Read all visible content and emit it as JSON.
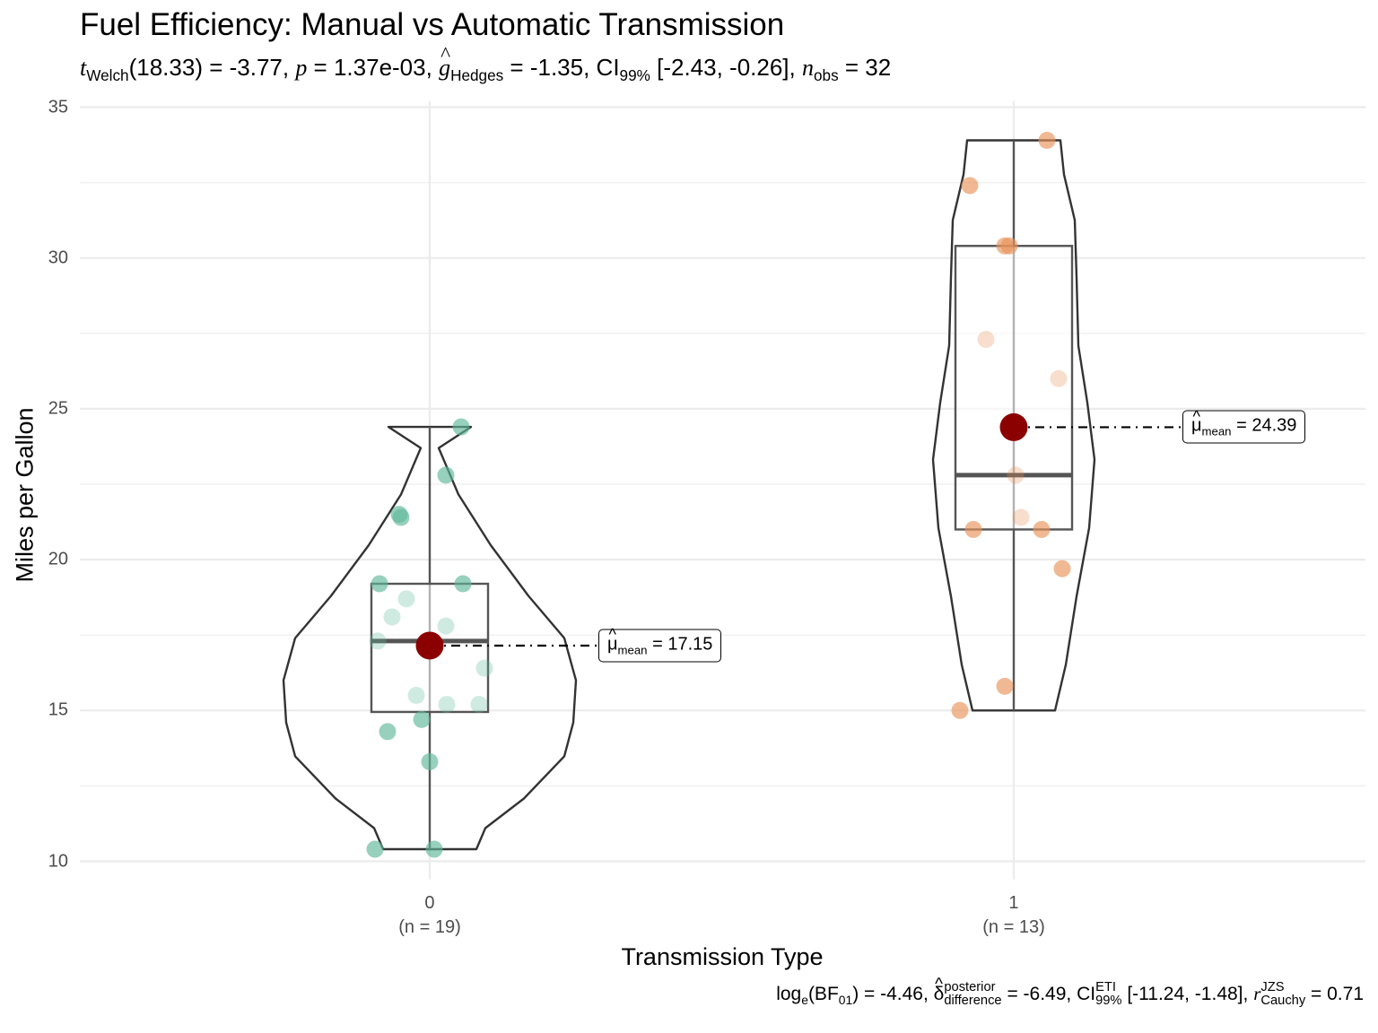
{
  "chart_data": {
    "type": "violin-box-jitter",
    "title": "Fuel Efficiency: Manual vs Automatic Transmission",
    "subtitle": {
      "t_label": "t",
      "t_sub": "Welch",
      "df": "(18.33) = -3.77, ",
      "p_label": "p",
      "p_value": " = 1.37e-03, ",
      "g_label": "g",
      "g_sub": "Hedges",
      "g_value": " = -1.35, CI",
      "ci_sub": "99%",
      "ci_value": " [-2.43, -0.26], ",
      "n_label": "n",
      "n_sub": "obs",
      "n_value": " = 32"
    },
    "caption": {
      "log_label": "log",
      "log_sub": "e",
      "bf_open": "(BF",
      "bf_sub": "01",
      "bf_value": ") = -4.46, ",
      "delta_label": "δ",
      "delta_sup": "posterior",
      "delta_sub": "difference",
      "delta_value": " = -6.49, CI",
      "ci_sup": "ETI",
      "ci_sub": "99%",
      "ci_value": " [-11.24, -1.48], ",
      "r_label": "r",
      "r_sup": "JZS",
      "r_sub": "Cauchy",
      "r_value": " = 0.71"
    },
    "xlabel": "Transmission Type",
    "ylabel": "Miles per Gallon",
    "ylim": [
      9.4,
      35.2
    ],
    "yticks": [
      "10",
      "15",
      "20",
      "25",
      "30",
      "35"
    ],
    "grid": true,
    "groups": [
      {
        "category": "0",
        "n_label": "(n = 19)",
        "color": "#5fb89a",
        "box": {
          "min": 10.4,
          "q1": 14.95,
          "median": 17.3,
          "q3": 19.2,
          "max": 24.4
        },
        "mean": 17.15,
        "mean_label_mu": "μ",
        "mean_label_sub": "mean",
        "mean_label_value": " = 17.15",
        "points": [
          10.4,
          10.4,
          13.3,
          14.3,
          14.7,
          15.2,
          15.2,
          15.5,
          16.4,
          17.3,
          17.8,
          18.1,
          18.7,
          19.2,
          19.2,
          21.4,
          21.5,
          22.8,
          24.4
        ]
      },
      {
        "category": "1",
        "n_label": "(n = 13)",
        "color": "#e8935a",
        "box": {
          "min": 15.0,
          "q1": 21.0,
          "median": 22.8,
          "q3": 30.4,
          "max": 33.9
        },
        "mean": 24.39,
        "mean_label_mu": "μ",
        "mean_label_sub": "mean",
        "mean_label_value": " = 24.39",
        "points": [
          15.0,
          15.8,
          19.7,
          21.0,
          21.0,
          21.4,
          22.8,
          26.0,
          27.3,
          30.4,
          30.4,
          32.4,
          33.9
        ]
      }
    ],
    "mean_point_color": "#8b0000"
  }
}
